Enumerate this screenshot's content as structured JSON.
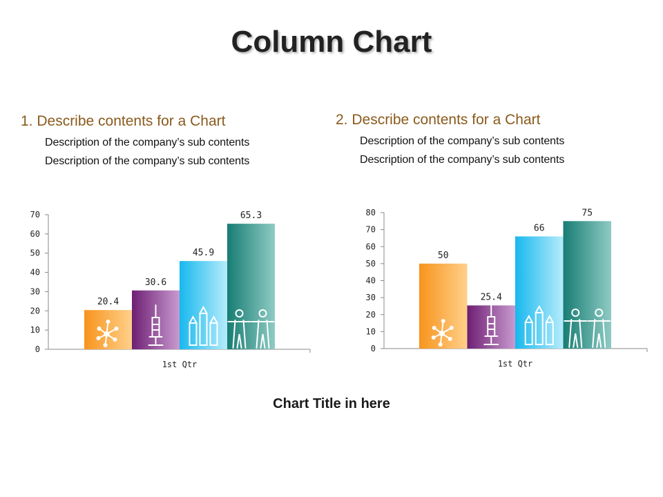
{
  "title": "Column Chart",
  "sections": [
    {
      "heading": "1. Describe contents for a Chart",
      "lines": [
        "Description of the company’s sub contents",
        "Description of the company’s sub contents"
      ]
    },
    {
      "heading": "2. Describe contents for a Chart",
      "lines": [
        "Description of the company’s sub contents",
        "Description of the company’s sub contents"
      ]
    }
  ],
  "chart_title": "Chart Title in here",
  "colors": {
    "heading": "#8a5a1c",
    "orange": "#f7941d",
    "purple": "#7b2a7e",
    "cyan": "#29c4f0",
    "teal": "#1f8a80"
  },
  "icons": [
    "molecule-icon",
    "syringe-icon",
    "pencils-icon",
    "people-icon"
  ],
  "chart_data": [
    {
      "type": "bar",
      "categories": [
        "1st Qtr"
      ],
      "series": [
        {
          "values": [
            20.4
          ]
        },
        {
          "values": [
            30.6
          ]
        },
        {
          "values": [
            45.9
          ]
        },
        {
          "values": [
            65.3
          ]
        }
      ],
      "ylim": [
        0,
        70
      ],
      "yticks": [
        0,
        10,
        20,
        30,
        40,
        50,
        60,
        70
      ],
      "grid": false,
      "legend": "none"
    },
    {
      "type": "bar",
      "categories": [
        "1st Qtr"
      ],
      "series": [
        {
          "values": [
            50
          ]
        },
        {
          "values": [
            25.4
          ]
        },
        {
          "values": [
            66
          ]
        },
        {
          "values": [
            75
          ]
        }
      ],
      "ylim": [
        0,
        80
      ],
      "yticks": [
        0,
        10,
        20,
        30,
        40,
        50,
        60,
        70,
        80
      ],
      "grid": false,
      "legend": "none"
    }
  ]
}
